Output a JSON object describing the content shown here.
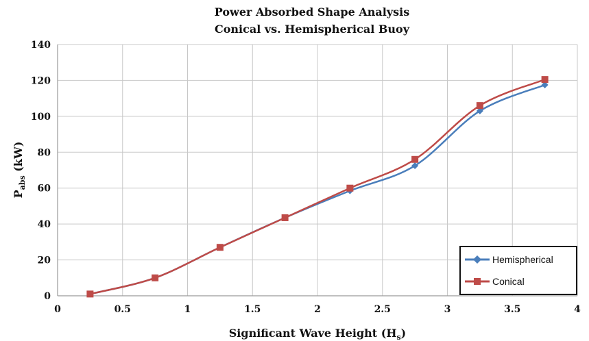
{
  "chart_data": {
    "type": "line",
    "title": "Power Absorbed Shape Analysis",
    "subtitle": "Conical vs. Hemispherical Buoy",
    "xlabel": "Significant Wave Height (Hs)",
    "xlabel_main": "Significant Wave Height (H",
    "xlabel_sub": "s",
    "xlabel_end": ")",
    "ylabel": "Pabs (kW)",
    "ylabel_main": "P",
    "ylabel_sub": "abs",
    "ylabel_end": " (kW)",
    "xlim": [
      0,
      4
    ],
    "ylim": [
      0,
      140
    ],
    "xticks": [
      "0",
      "0.5",
      "1",
      "1.5",
      "2",
      "2.5",
      "3",
      "3.5",
      "4"
    ],
    "yticks": [
      "0",
      "20",
      "40",
      "60",
      "80",
      "100",
      "120",
      "140"
    ],
    "grid": true,
    "legend_position": "bottom-right",
    "x": [
      0.25,
      0.75,
      1.25,
      1.75,
      2.25,
      2.75,
      3.25,
      3.75
    ],
    "series": [
      {
        "name": "Hemispherical",
        "color": "#4a7ebb",
        "marker": "diamond",
        "values": [
          1,
          10,
          27,
          43.5,
          58.5,
          72.5,
          103,
          117.5
        ]
      },
      {
        "name": "Conical",
        "color": "#be4b48",
        "marker": "square",
        "values": [
          1,
          10,
          27,
          43.5,
          60,
          76,
          106,
          120.5
        ]
      }
    ]
  }
}
